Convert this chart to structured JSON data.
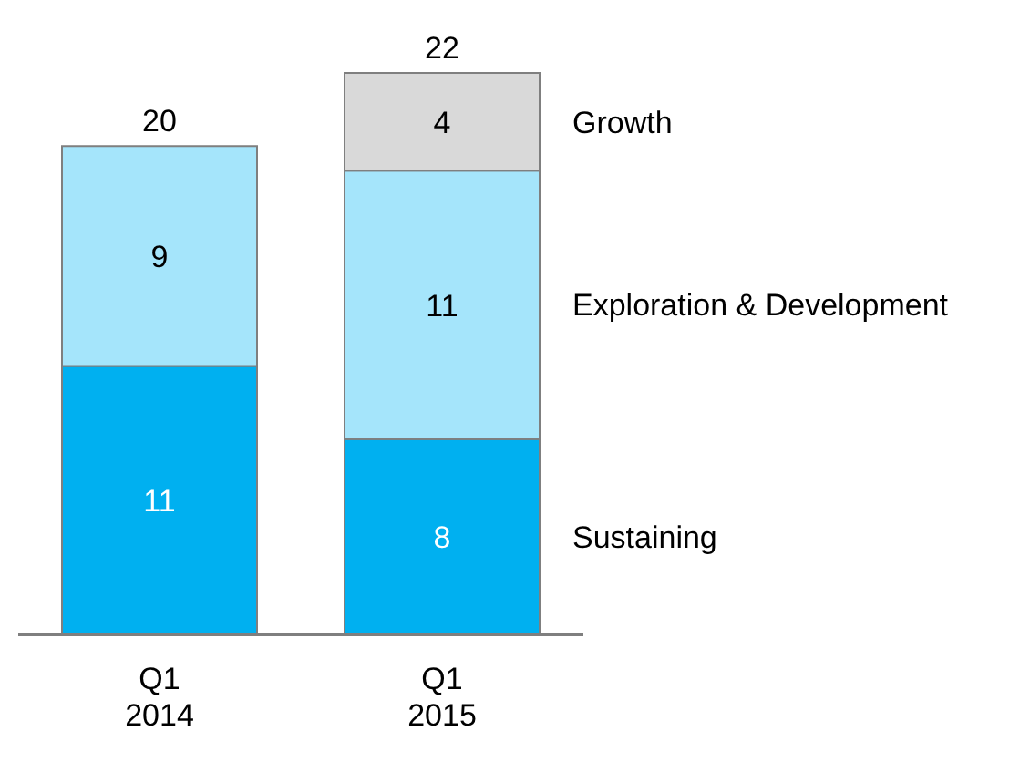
{
  "chart_data": {
    "type": "bar",
    "stacked": true,
    "categories": [
      "Q1 2014",
      "Q1 2015"
    ],
    "series": [
      {
        "name": "Sustaining",
        "color": "#00b0f0",
        "values": [
          11,
          8
        ]
      },
      {
        "name": "Exploration & Development",
        "color": "#a5e5fb",
        "values": [
          9,
          11
        ]
      },
      {
        "name": "Growth",
        "color": "#d9d9d9",
        "values": [
          null,
          4
        ]
      }
    ],
    "data_labels": true,
    "totals": [
      "20",
      "22"
    ],
    "tick_labels": "x",
    "grid": false,
    "legend": false
  }
}
